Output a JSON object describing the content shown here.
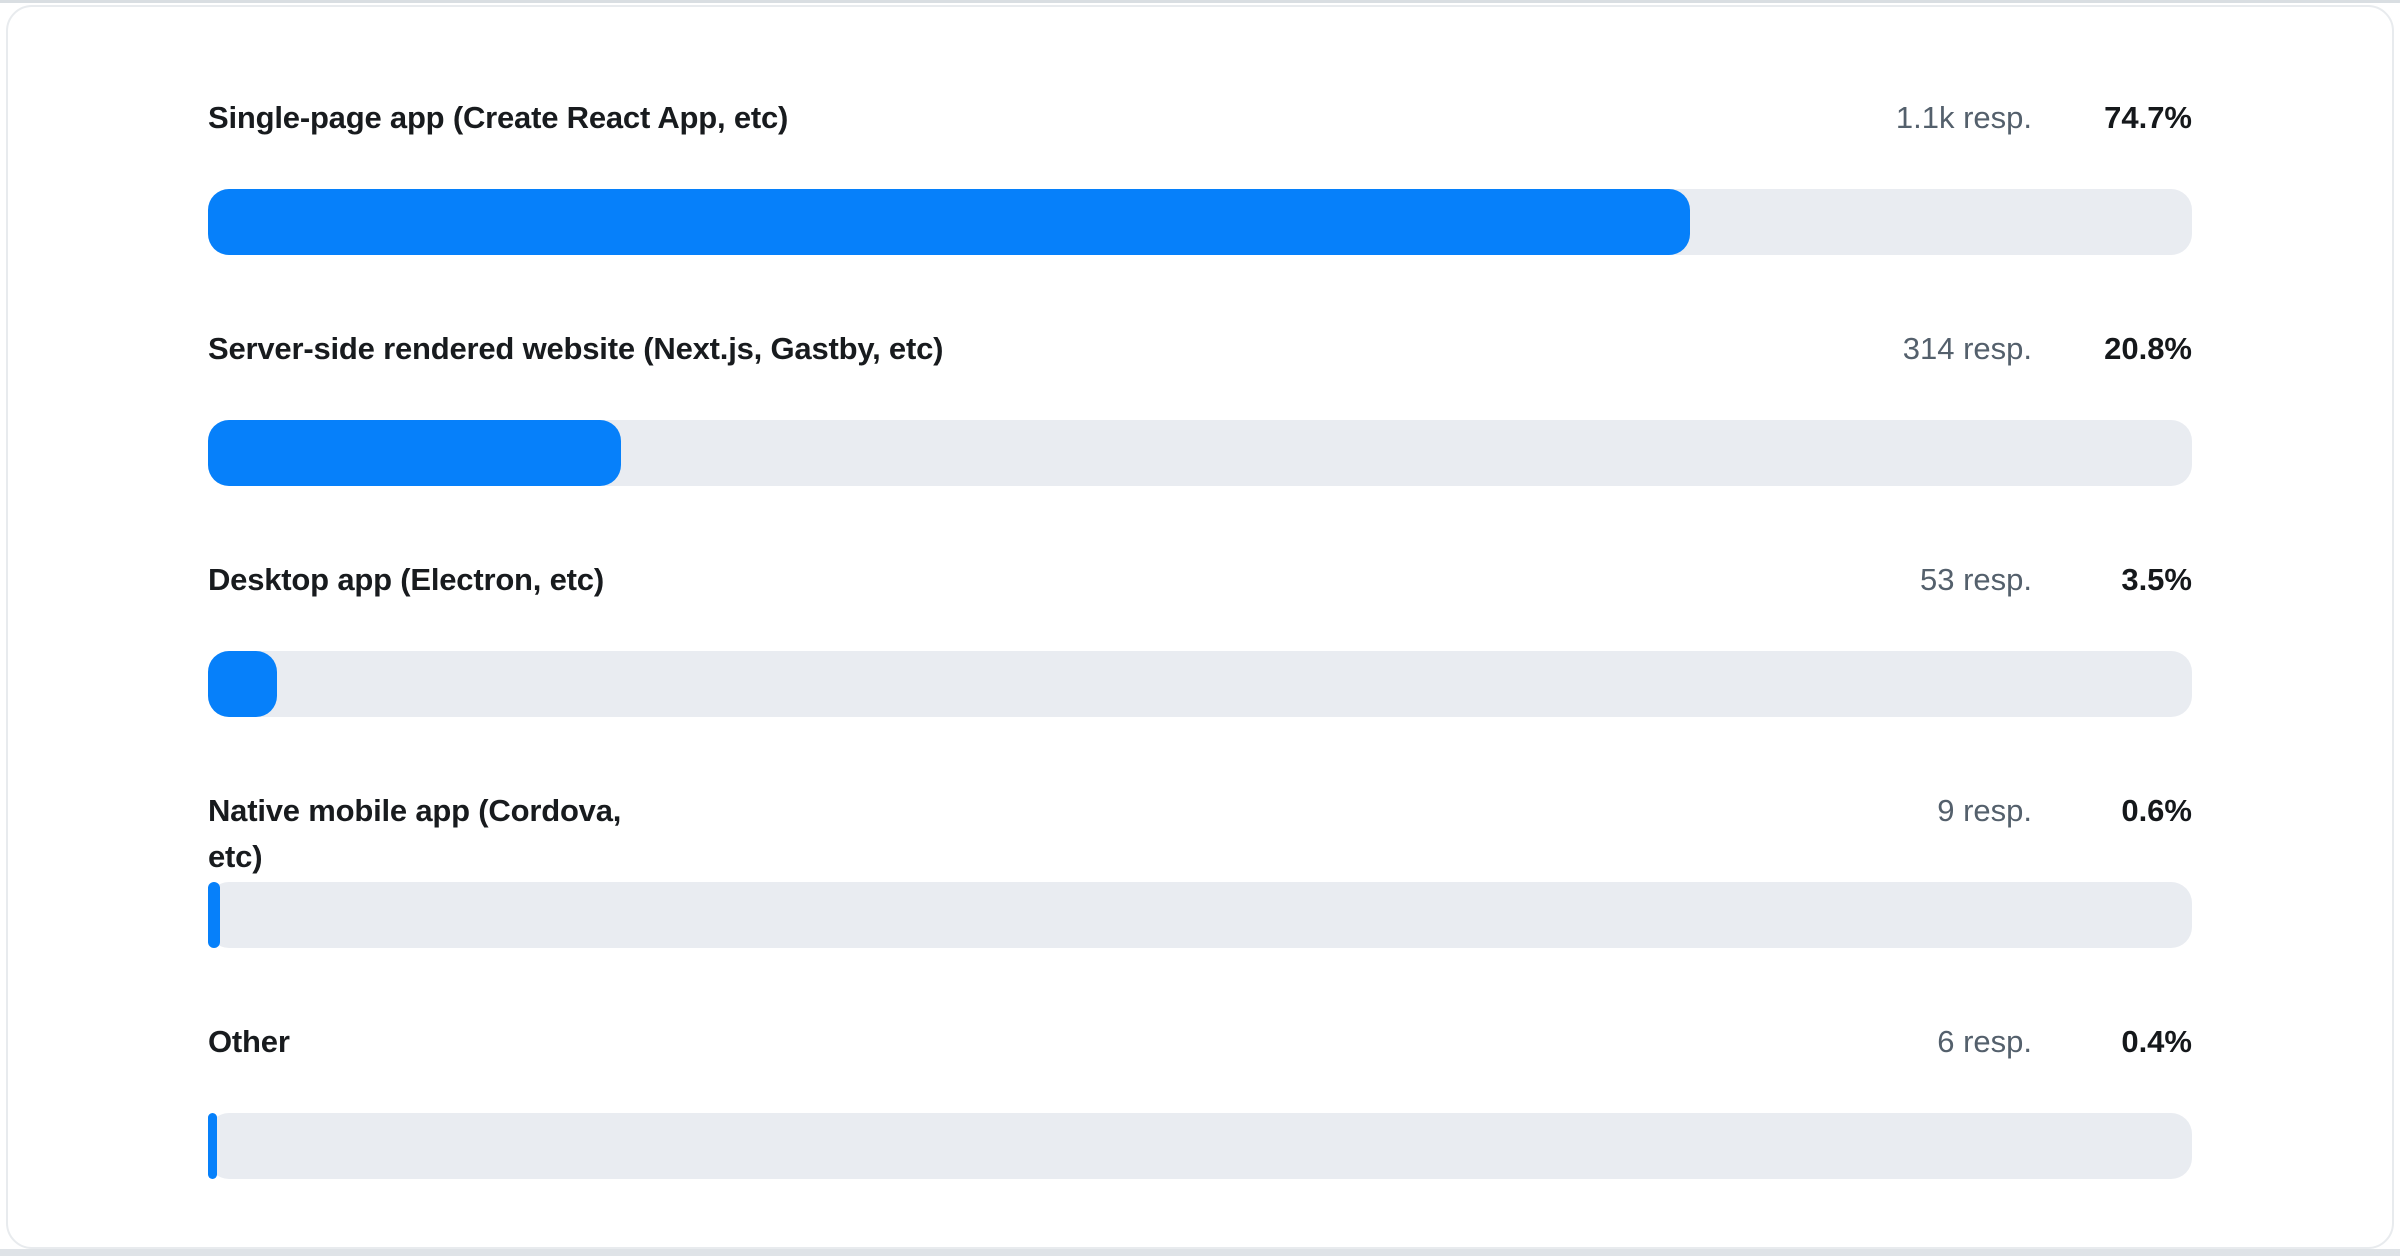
{
  "chart_data": {
    "type": "bar",
    "orientation": "horizontal",
    "title": "",
    "categories": [
      "Single-page app (Create React App, etc)",
      "Server-side rendered website (Next.js, Gastby, etc)",
      "Desktop app (Electron, etc)",
      "Native mobile app (Cordova, etc)",
      "Other"
    ],
    "values": [
      74.7,
      20.8,
      3.5,
      0.6,
      0.4
    ],
    "value_labels": [
      "74.7%",
      "20.8%",
      "3.5%",
      "0.6%",
      "0.4%"
    ],
    "responses_labels": [
      "1.1k resp.",
      "314 resp.",
      "53 resp.",
      "9 resp.",
      "6 resp."
    ],
    "xlim": [
      0,
      100
    ],
    "bar_color": "#0680fa",
    "track_color": "#e9ecf1",
    "legend": "none",
    "grid": false
  }
}
